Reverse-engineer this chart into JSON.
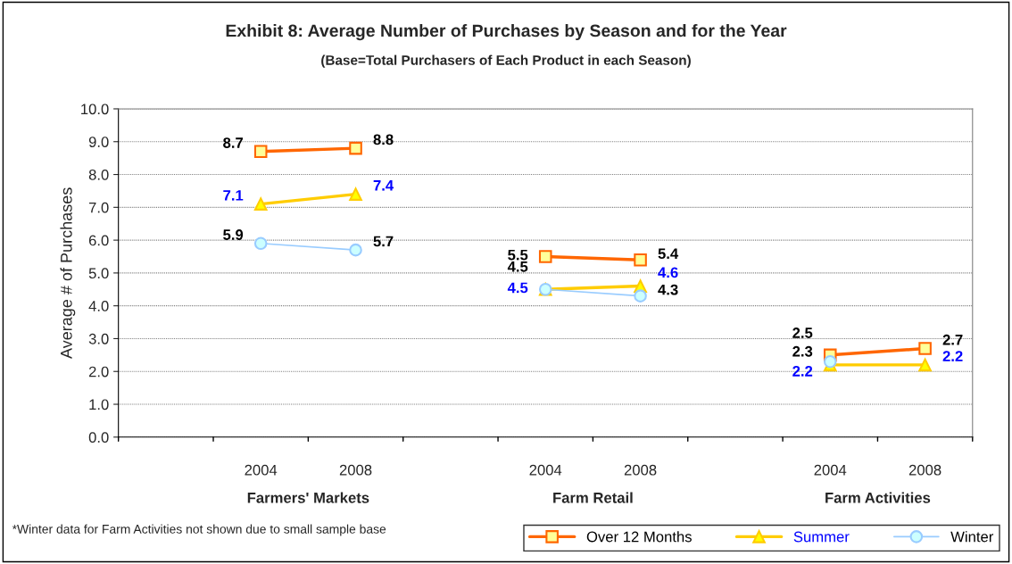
{
  "chart_data": {
    "type": "line",
    "title": "Exhibit 8: Average Number of Purchases by Season and for the Year",
    "subtitle": "(Base=Total Purchasers of Each Product in each Season)",
    "ylabel": "Average # of Purchases",
    "categories": [
      null,
      "2004",
      "2008",
      null,
      "2004",
      "2008",
      null,
      "2004",
      "2008"
    ],
    "series": [
      {
        "name": "Over 12 Months",
        "color": "#ff6600",
        "marker": "square",
        "values": [
          null,
          8.7,
          8.8,
          null,
          5.5,
          5.4,
          null,
          2.5,
          2.7
        ]
      },
      {
        "name": "Summer",
        "color": "#ffcc00",
        "marker": "triangle",
        "values": [
          null,
          7.1,
          7.4,
          null,
          4.5,
          4.6,
          null,
          2.2,
          2.2
        ]
      },
      {
        "name": "Winter",
        "color": "#99ccff",
        "marker": "circle",
        "values": [
          null,
          5.9,
          5.7,
          null,
          4.5,
          4.3,
          null,
          2.3,
          null
        ]
      }
    ],
    "ylim": [
      0,
      10
    ],
    "yticks": [
      {
        "value": 0,
        "label": "0.0"
      },
      {
        "value": 1,
        "label": "1.0"
      },
      {
        "value": 2,
        "label": "2.0"
      },
      {
        "value": 3,
        "label": "3.0"
      },
      {
        "value": 4,
        "label": "4.0"
      },
      {
        "value": 5,
        "label": "5.0"
      },
      {
        "value": 6,
        "label": "6.0"
      },
      {
        "value": 7,
        "label": "7.0"
      },
      {
        "value": 8,
        "label": "8.0"
      },
      {
        "value": 9,
        "label": "9.0"
      },
      {
        "value": 10,
        "label": "10.0"
      }
    ],
    "grid": "y",
    "data_labels": true,
    "legend": "bottom right",
    "annotations": [
      "Farmers' Markets",
      "Farm Retail",
      "Farm Activities",
      "*Winter data for Farm Activities not shown due to small sample base"
    ]
  }
}
